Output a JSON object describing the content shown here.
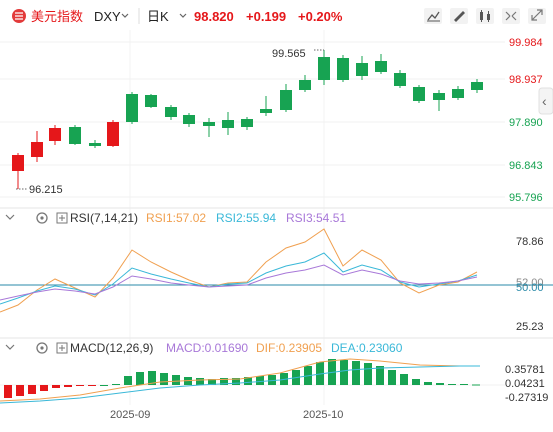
{
  "header": {
    "symbol_name": "美元指数",
    "symbol_code": "DXY",
    "period": "日K",
    "price": "98.820",
    "change": "+0.199",
    "change_pct": "+0.20%",
    "tools": [
      "drawing-tool-icon",
      "pen-edit-icon",
      "candlestick-style-icon",
      "collapse-icon",
      "expand-icon"
    ]
  },
  "main_chart": {
    "price_labels": [
      "99.984",
      "98.937",
      "97.890",
      "96.843",
      "95.796"
    ],
    "high_label": "99.565",
    "low_label": "96.215",
    "collapse_label": "‹",
    "colors": {
      "up": "#e5171a",
      "down": "#17a352",
      "up_text": "#e5171a",
      "down_text": "#17a352"
    }
  },
  "rsi_panel": {
    "title": "RSI(7,14,21)",
    "rsi1_label": "RSI1:57.02",
    "rsi2_label": "RSI2:55.94",
    "rsi3_label": "RSI3:54.51",
    "axis_labels": [
      "78.86",
      "52.00",
      "50.00",
      "25.23"
    ],
    "colors": {
      "rsi1": "#f0a050",
      "rsi2": "#3ab8d8",
      "rsi3": "#a878d8",
      "midline": "#2a8aa8"
    }
  },
  "macd_panel": {
    "title": "MACD(12,26,9)",
    "macd_label": "MACD:0.01690",
    "dif_label": "DIF:0.23905",
    "dea_label": "DEA:0.23060",
    "axis_labels": [
      "0.35781",
      "0.04231",
      "-0.27319"
    ],
    "colors": {
      "macd": "#a878d8",
      "dif": "#f0a050",
      "dea": "#3ab8d8"
    }
  },
  "x_axis": {
    "dates": [
      "2025-09",
      "2025-10"
    ]
  }
}
